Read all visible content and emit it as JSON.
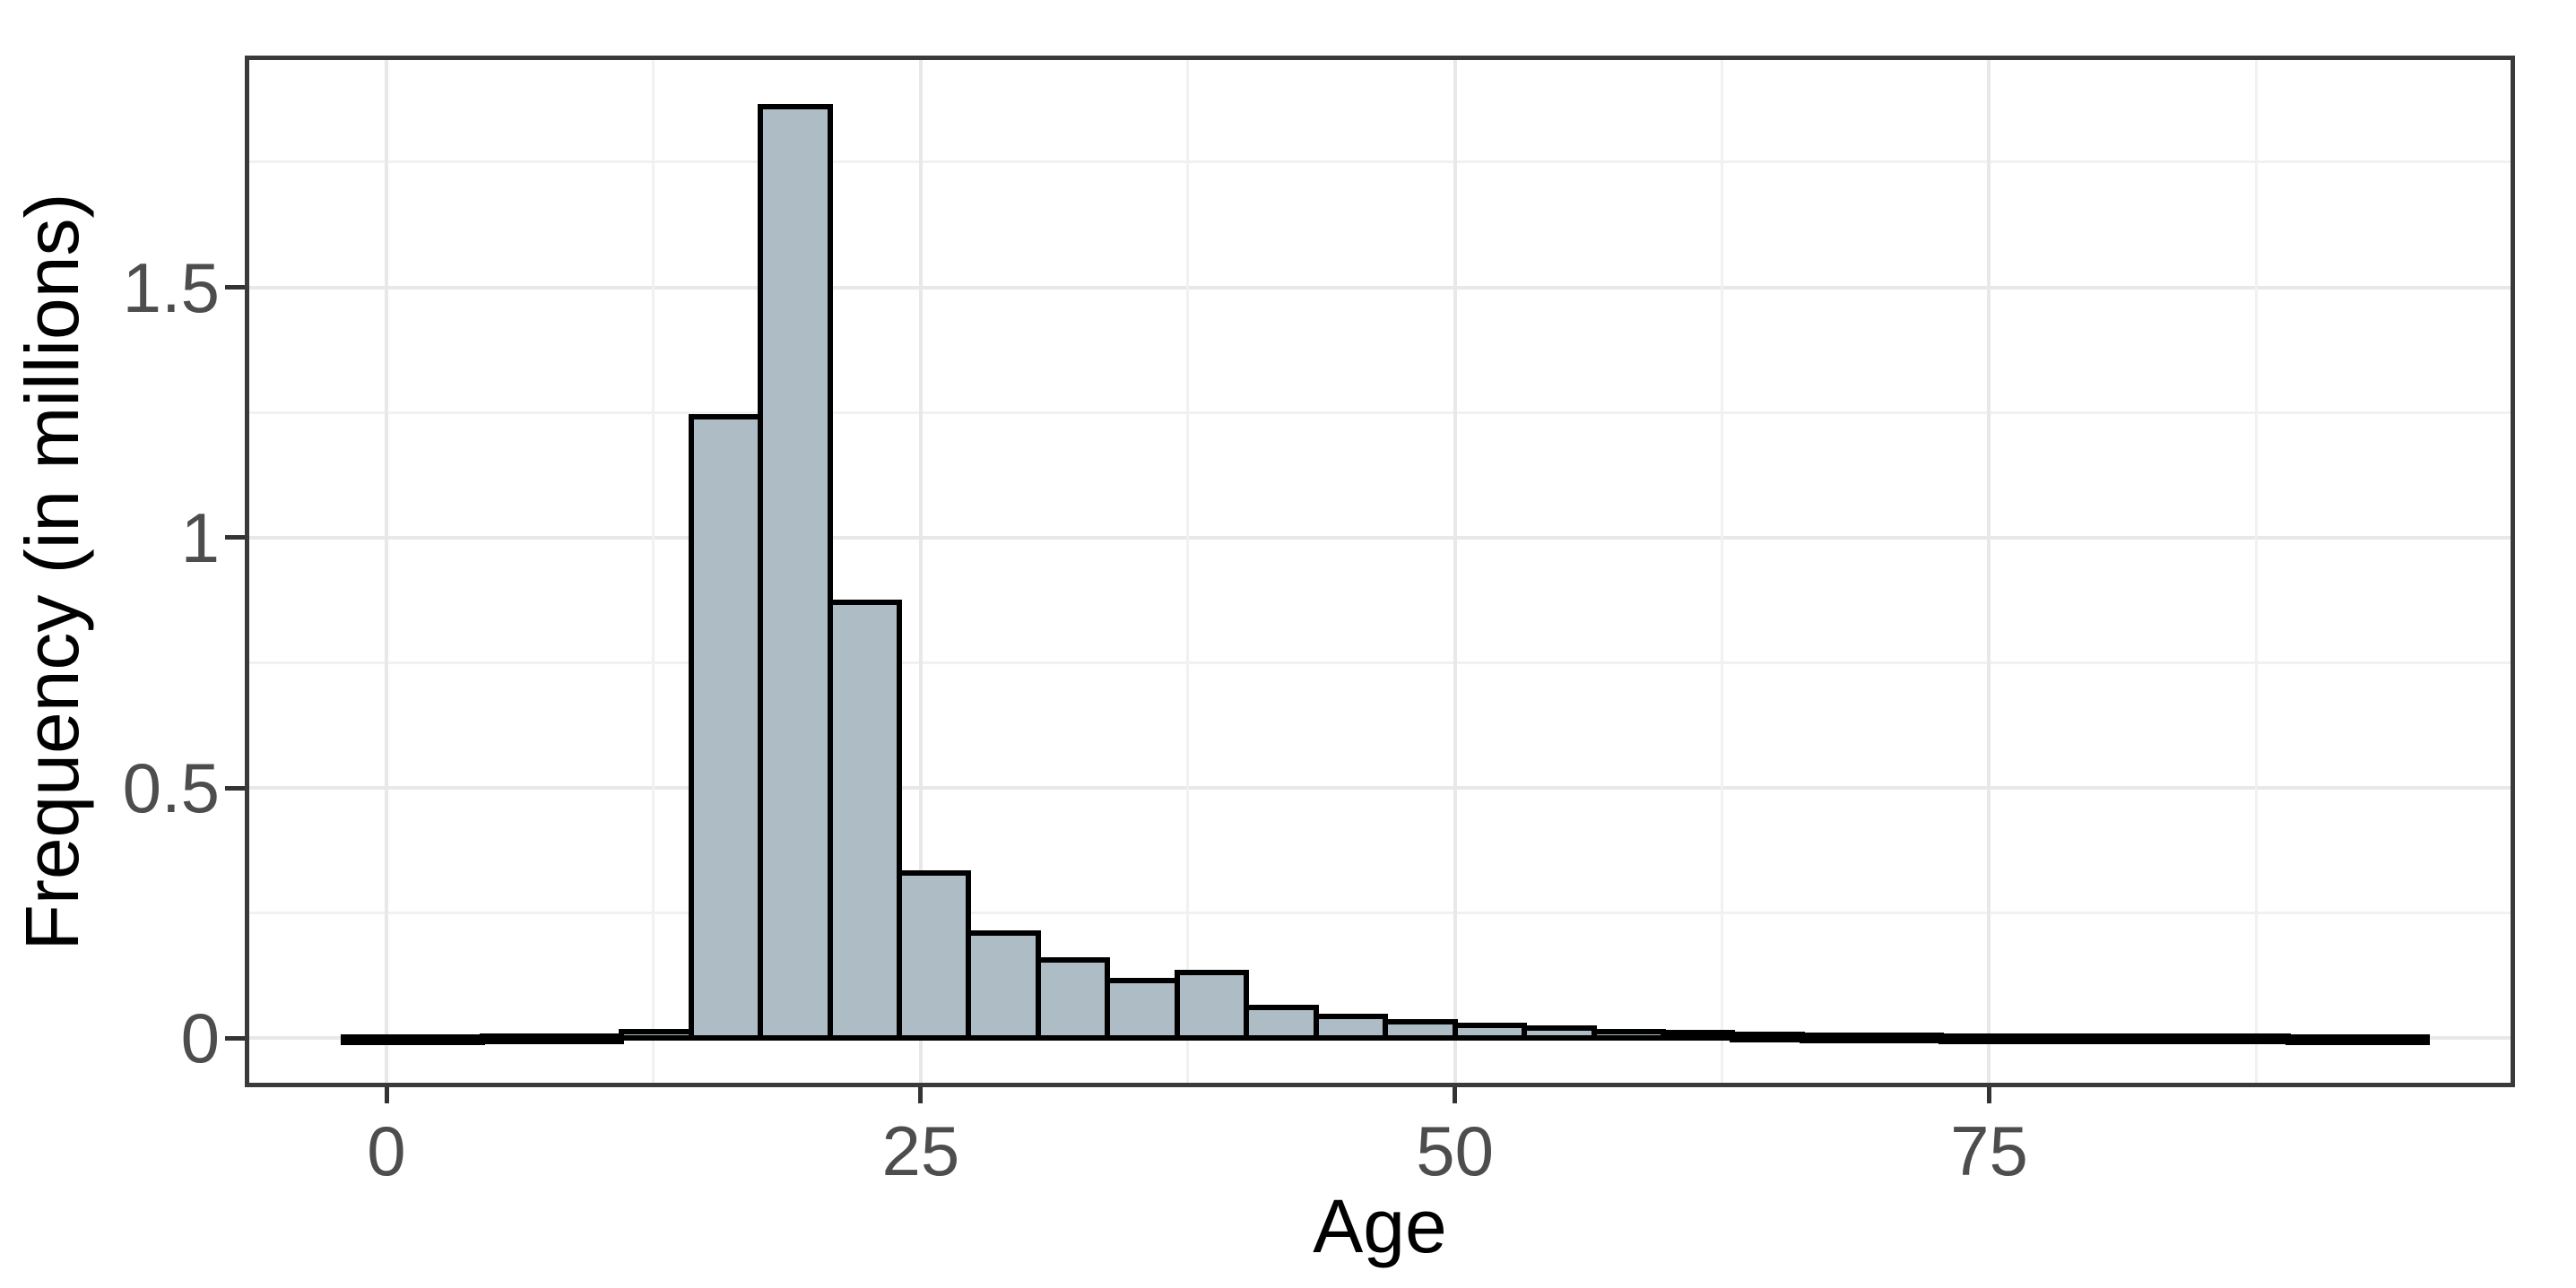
{
  "chart_data": {
    "type": "bar",
    "subtype": "histogram",
    "title": "",
    "xlabel": "Age",
    "ylabel": "Frequency (in millions)",
    "bin_width": 3.25,
    "bin_starts": [
      -2.0,
      1.25,
      4.5,
      7.75,
      11.0,
      14.25,
      17.5,
      20.75,
      24.0,
      27.25,
      30.5,
      33.75,
      37.0,
      40.25,
      43.5,
      46.75,
      50.0,
      53.25,
      56.5,
      59.75,
      63.0,
      66.25,
      69.5,
      72.75,
      76.0,
      79.25,
      82.5,
      85.75,
      89.0,
      92.25
    ],
    "values": [
      0.002,
      0.002,
      0.003,
      0.003,
      0.012,
      1.24,
      1.86,
      0.87,
      0.33,
      0.21,
      0.155,
      0.115,
      0.13,
      0.06,
      0.043,
      0.032,
      0.025,
      0.02,
      0.012,
      0.01,
      0.008,
      0.006,
      0.005,
      0.004,
      0.004,
      0.003,
      0.003,
      0.003,
      0.002,
      0.002
    ],
    "x_tick_values": [
      0,
      25,
      50,
      75
    ],
    "x_tick_labels": [
      "0",
      "25",
      "50",
      "75"
    ],
    "x_minor_values": [
      12.5,
      37.5,
      62.5,
      87.5
    ],
    "y_tick_values": [
      0,
      0.5,
      1,
      1.5
    ],
    "y_tick_labels": [
      "0",
      "0.5",
      "1",
      "1.5"
    ],
    "y_minor_values": [
      0.25,
      0.75,
      1.25,
      1.75
    ],
    "xlim": [
      -6.42,
      99.4
    ],
    "ylim": [
      -0.089,
      1.954
    ],
    "grid": "major-and-minor",
    "legend": "none",
    "colors": {
      "bar_fill": "#AEBDC5",
      "bar_stroke": "#000000",
      "grid_major": "#E8E8E8",
      "grid_minor": "#F1F1F1",
      "panel_border": "#3A3A3A",
      "tick_mark": "#333333",
      "tick_label": "#4D4D4D",
      "axis_title": "#000000",
      "background": "#FFFFFF"
    }
  }
}
